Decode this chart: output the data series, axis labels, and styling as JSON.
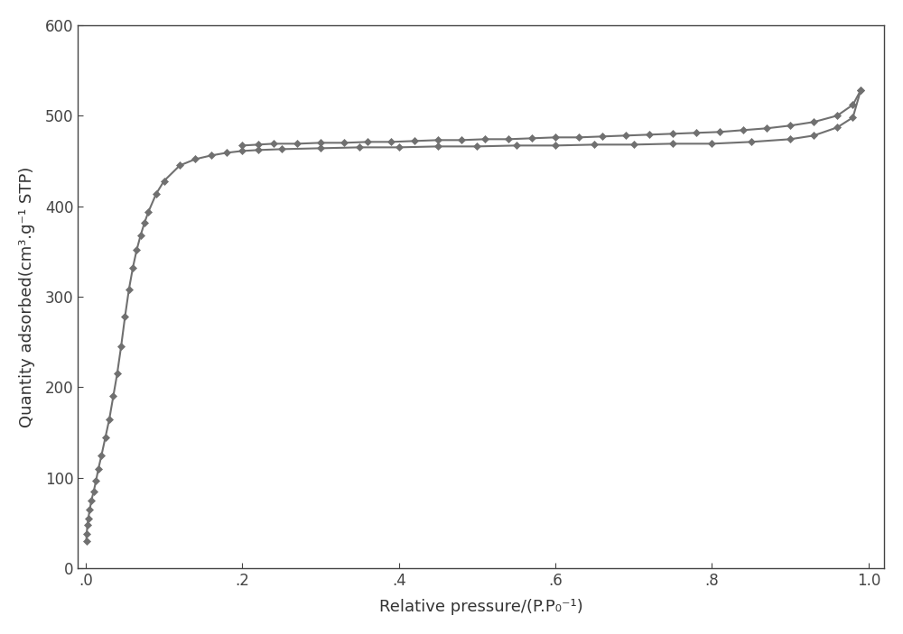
{
  "title": "",
  "xlabel": "Relative pressure/(P.P₀⁻¹)",
  "ylabel": "Quantity adsorbed(cm³.g⁻¹ STP)",
  "xlim": [
    -0.01,
    1.02
  ],
  "ylim": [
    0,
    600
  ],
  "yticks": [
    0,
    100,
    200,
    300,
    400,
    500,
    600
  ],
  "xticks": [
    0.0,
    0.2,
    0.4,
    0.6,
    0.8,
    1.0
  ],
  "xticklabels": [
    ".0",
    ".2",
    ".4",
    ".6",
    ".8",
    "1.0"
  ],
  "background_color": "#ffffff",
  "plot_bg_color": "#ffffff",
  "line_color": "#707070",
  "marker_color": "#707070",
  "adsorption_x": [
    0.0005,
    0.001,
    0.002,
    0.003,
    0.005,
    0.007,
    0.01,
    0.013,
    0.016,
    0.02,
    0.025,
    0.03,
    0.035,
    0.04,
    0.045,
    0.05,
    0.055,
    0.06,
    0.065,
    0.07,
    0.075,
    0.08,
    0.09,
    0.1,
    0.12,
    0.14,
    0.16,
    0.18,
    0.2,
    0.22,
    0.25,
    0.3,
    0.35,
    0.4,
    0.45,
    0.5,
    0.55,
    0.6,
    0.65,
    0.7,
    0.75,
    0.8,
    0.85,
    0.9,
    0.93,
    0.96,
    0.98,
    0.99
  ],
  "adsorption_y": [
    30,
    38,
    48,
    55,
    65,
    75,
    85,
    97,
    110,
    125,
    145,
    165,
    190,
    215,
    245,
    278,
    308,
    332,
    352,
    368,
    382,
    394,
    414,
    428,
    445,
    452,
    456,
    459,
    461,
    462,
    463,
    464,
    465,
    465,
    466,
    466,
    467,
    467,
    468,
    468,
    469,
    469,
    471,
    474,
    478,
    487,
    498,
    528
  ],
  "desorption_x": [
    0.99,
    0.98,
    0.96,
    0.93,
    0.9,
    0.87,
    0.84,
    0.81,
    0.78,
    0.75,
    0.72,
    0.69,
    0.66,
    0.63,
    0.6,
    0.57,
    0.54,
    0.51,
    0.48,
    0.45,
    0.42,
    0.39,
    0.36,
    0.33,
    0.3,
    0.27,
    0.24,
    0.22,
    0.2
  ],
  "desorption_y": [
    528,
    512,
    500,
    493,
    489,
    486,
    484,
    482,
    481,
    480,
    479,
    478,
    477,
    476,
    476,
    475,
    474,
    474,
    473,
    473,
    472,
    471,
    471,
    470,
    470,
    469,
    469,
    468,
    467
  ],
  "fontsize_label": 13,
  "fontsize_tick": 12,
  "linewidth": 1.5,
  "markersize": 4.5
}
